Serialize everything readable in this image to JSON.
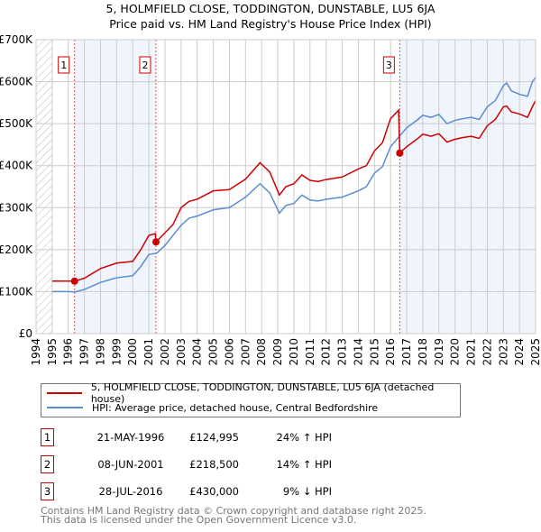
{
  "chart_data": {
    "type": "line",
    "title": "5, HOLMFIELD CLOSE, TODDINGTON, DUNSTABLE, LU5 6JA",
    "subtitle": "Price paid vs. HM Land Registry's House Price Index (HPI)",
    "xlim": [
      1994,
      2025
    ],
    "ylim": [
      0,
      700000
    ],
    "yticks": [
      {
        "v": 0,
        "l": "£0"
      },
      {
        "v": 100000,
        "l": "£100K"
      },
      {
        "v": 200000,
        "l": "£200K"
      },
      {
        "v": 300000,
        "l": "£300K"
      },
      {
        "v": 400000,
        "l": "£400K"
      },
      {
        "v": 500000,
        "l": "£500K"
      },
      {
        "v": 600000,
        "l": "£600K"
      },
      {
        "v": 700000,
        "l": "£700K"
      }
    ],
    "xticks": [
      "1994",
      "1995",
      "1996",
      "1997",
      "1998",
      "1999",
      "2000",
      "2001",
      "2002",
      "2003",
      "2004",
      "2005",
      "2006",
      "2007",
      "2008",
      "2009",
      "2010",
      "2011",
      "2012",
      "2013",
      "2014",
      "2015",
      "2016",
      "2017",
      "2018",
      "2019",
      "2020",
      "2021",
      "2022",
      "2023",
      "2024",
      "2025"
    ],
    "grid": true,
    "series": [
      {
        "name": "5, HOLMFIELD CLOSE, TODDINGTON, DUNSTABLE, LU5 6JA (detached house)",
        "color": "#cc0000",
        "points": [
          [
            1995,
            125
          ],
          [
            1996,
            125
          ],
          [
            1996.39,
            125
          ],
          [
            1997,
            132
          ],
          [
            1998,
            155
          ],
          [
            1999,
            168
          ],
          [
            2000,
            172
          ],
          [
            2000.5,
            200
          ],
          [
            2001,
            234
          ],
          [
            2001.4,
            238
          ],
          [
            2001.44,
            218.5
          ],
          [
            2002,
            240
          ],
          [
            2002.5,
            260
          ],
          [
            2003,
            300
          ],
          [
            2003.5,
            315
          ],
          [
            2004,
            320
          ],
          [
            2005,
            340
          ],
          [
            2006,
            343
          ],
          [
            2007,
            368
          ],
          [
            2007.9,
            407
          ],
          [
            2008.5,
            385
          ],
          [
            2009.1,
            330
          ],
          [
            2009.5,
            350
          ],
          [
            2010,
            357
          ],
          [
            2010.5,
            378
          ],
          [
            2011,
            365
          ],
          [
            2011.5,
            362
          ],
          [
            2012,
            367
          ],
          [
            2013,
            373
          ],
          [
            2014,
            392
          ],
          [
            2014.5,
            400
          ],
          [
            2015,
            435
          ],
          [
            2015.5,
            455
          ],
          [
            2016,
            512
          ],
          [
            2016.5,
            532
          ],
          [
            2016.57,
            430
          ],
          [
            2017,
            445
          ],
          [
            2017.7,
            465
          ],
          [
            2018,
            475
          ],
          [
            2018.5,
            470
          ],
          [
            2019,
            476
          ],
          [
            2019.5,
            456
          ],
          [
            2020,
            463
          ],
          [
            2020.5,
            467
          ],
          [
            2021,
            470
          ],
          [
            2021.5,
            465
          ],
          [
            2022,
            495
          ],
          [
            2022.5,
            510
          ],
          [
            2023,
            540
          ],
          [
            2023.2,
            542
          ],
          [
            2023.5,
            528
          ],
          [
            2024,
            523
          ],
          [
            2024.5,
            515
          ],
          [
            2024.8,
            540
          ],
          [
            2025,
            555
          ]
        ]
      },
      {
        "name": "HPI: Average price, detached house, Central Bedfordshire",
        "color": "#5b8dd0",
        "points": [
          [
            1995,
            100
          ],
          [
            1996,
            100
          ],
          [
            1996.4,
            99
          ],
          [
            1997,
            105
          ],
          [
            1998,
            122
          ],
          [
            1999,
            133
          ],
          [
            2000,
            138
          ],
          [
            2000.5,
            160
          ],
          [
            2001,
            188
          ],
          [
            2001.5,
            192
          ],
          [
            2002,
            210
          ],
          [
            2003,
            258
          ],
          [
            2003.5,
            275
          ],
          [
            2004,
            280
          ],
          [
            2005,
            295
          ],
          [
            2006,
            300
          ],
          [
            2007,
            325
          ],
          [
            2007.9,
            357
          ],
          [
            2008.5,
            335
          ],
          [
            2009.1,
            287
          ],
          [
            2009.5,
            305
          ],
          [
            2010,
            310
          ],
          [
            2010.5,
            330
          ],
          [
            2011,
            318
          ],
          [
            2011.5,
            316
          ],
          [
            2012,
            320
          ],
          [
            2013,
            325
          ],
          [
            2014,
            340
          ],
          [
            2014.5,
            350
          ],
          [
            2015,
            382
          ],
          [
            2015.5,
            398
          ],
          [
            2016,
            445
          ],
          [
            2016.5,
            468
          ],
          [
            2017,
            490
          ],
          [
            2017.7,
            510
          ],
          [
            2018,
            520
          ],
          [
            2018.5,
            515
          ],
          [
            2019,
            522
          ],
          [
            2019.5,
            500
          ],
          [
            2020,
            508
          ],
          [
            2020.5,
            512
          ],
          [
            2021,
            515
          ],
          [
            2021.5,
            510
          ],
          [
            2022,
            540
          ],
          [
            2022.5,
            555
          ],
          [
            2023,
            590
          ],
          [
            2023.2,
            597
          ],
          [
            2023.5,
            578
          ],
          [
            2024,
            570
          ],
          [
            2024.5,
            565
          ],
          [
            2024.8,
            600
          ],
          [
            2025,
            610
          ]
        ]
      }
    ],
    "sales": [
      {
        "n": "1",
        "x": 1996.39,
        "y": 124995
      },
      {
        "n": "2",
        "x": 2001.44,
        "y": 218500
      },
      {
        "n": "3",
        "x": 2016.57,
        "y": 430000
      }
    ]
  },
  "legend": {
    "property": "5, HOLMFIELD CLOSE, TODDINGTON, DUNSTABLE, LU5 6JA (detached house)",
    "hpi": "HPI: Average price, detached house, Central Bedfordshire"
  },
  "transactions": [
    {
      "n": "1",
      "date": "21-MAY-1996",
      "price": "£124,995",
      "pct": "24% ↑ HPI"
    },
    {
      "n": "2",
      "date": "08-JUN-2001",
      "price": "£218,500",
      "pct": "14% ↑ HPI"
    },
    {
      "n": "3",
      "date": "28-JUL-2016",
      "price": "£430,000",
      "pct": "9% ↓ HPI"
    }
  ],
  "footer": [
    "Contains HM Land Registry data © Crown copyright and database right 2025.",
    "This data is licensed under the Open Government Licence v3.0."
  ]
}
